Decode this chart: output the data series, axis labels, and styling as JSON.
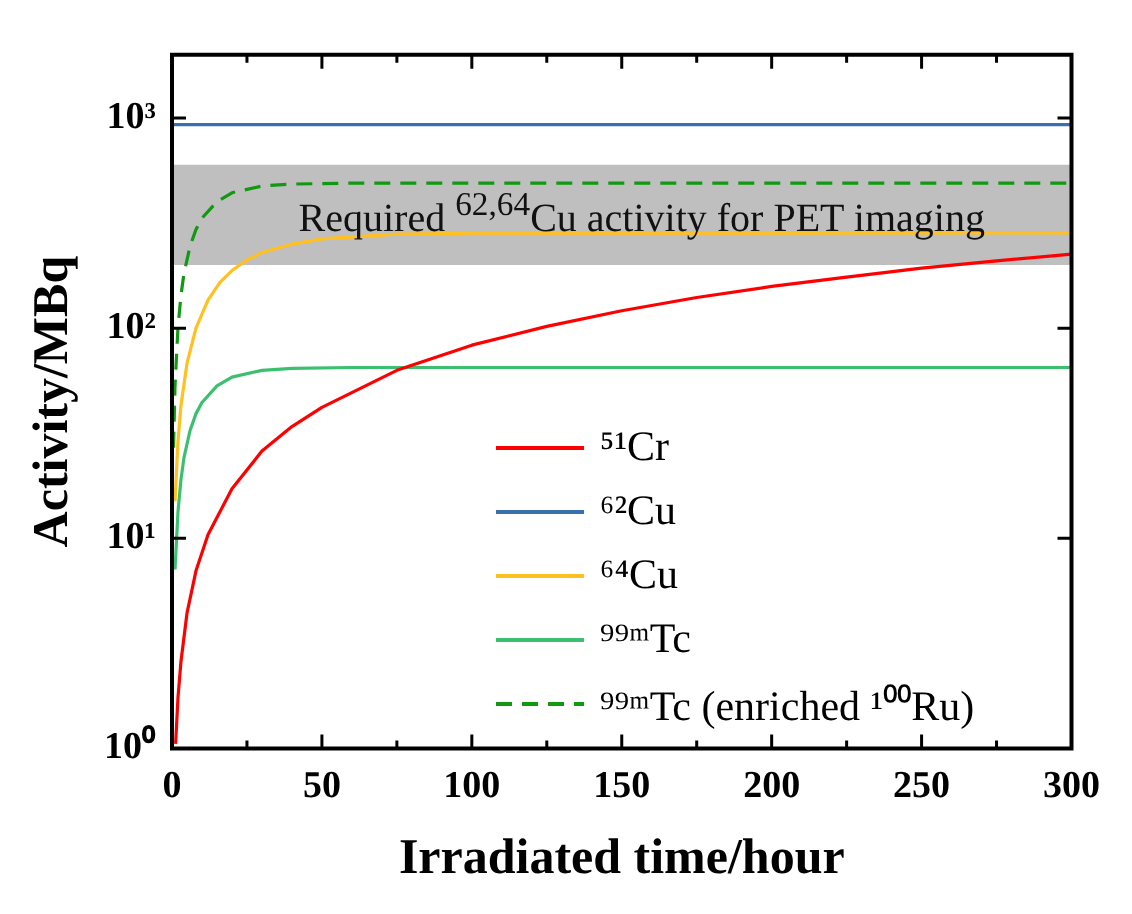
{
  "chart_data": {
    "type": "line",
    "xlabel": "Irradiated time/hour",
    "ylabel": "Activity/MBq",
    "log": "y",
    "grid": false,
    "legend": "right",
    "marker": "none",
    "xlim": [
      0,
      300
    ],
    "xticks": [
      0,
      {
        "value": 25,
        "label": null
      },
      50,
      {
        "value": 75,
        "label": null
      },
      100,
      {
        "value": 125,
        "label": null
      },
      150,
      {
        "value": 175,
        "label": null
      },
      200,
      {
        "value": 225,
        "label": null
      },
      250,
      {
        "value": 275,
        "label": null
      },
      300
    ],
    "ylim": [
      1,
      2000
    ],
    "yticks": [
      {
        "value": 1,
        "label": "10⁰"
      },
      {
        "value": 10,
        "label": "10¹"
      },
      {
        "value": 100,
        "label": "10²"
      },
      {
        "value": 1000,
        "label": "10³"
      }
    ],
    "bands": [
      {
        "axis": "y",
        "from": 200,
        "to": 600,
        "label": "Required $^{62,64}$Cu activity for PET imaging",
        "color": "#bfbfbf"
      }
    ],
    "series": [
      {
        "name": "⁵¹Cr",
        "color": "#ff0000",
        "line_style": "solid",
        "x": [
          1.2,
          2,
          3,
          5,
          8,
          12,
          20,
          30,
          40,
          50,
          75,
          100,
          125,
          150,
          175,
          200,
          225,
          250,
          275,
          300
        ],
        "values": [
          1.05,
          1.75,
          2.6,
          4.4,
          7,
          10.4,
          17.2,
          26,
          34,
          42,
          63,
          83,
          102,
          121,
          140,
          158,
          175,
          193,
          209,
          225
        ]
      },
      {
        "name": "⁶²Cu",
        "color": "#3a6fb0",
        "line_style": "solid",
        "x": [
          0,
          300
        ],
        "values": [
          930,
          930
        ]
      },
      {
        "name": "⁶⁴Cu",
        "color": "#ffc020",
        "line_style": "solid",
        "x": [
          1,
          2,
          3,
          5,
          8,
          12,
          16,
          20,
          25,
          30,
          40,
          50,
          75,
          100,
          300
        ],
        "values": [
          15,
          29,
          43,
          68,
          100,
          136,
          165,
          188,
          211,
          229,
          251,
          266,
          280,
          283,
          284
        ]
      },
      {
        "name": "⁹⁹ᵐTc",
        "color": "#3cc070",
        "line_style": "solid",
        "x": [
          1,
          2,
          3,
          4,
          6,
          8,
          10,
          15,
          20,
          30,
          40,
          60,
          300
        ],
        "values": [
          7.1,
          13.4,
          19.1,
          24.2,
          32.5,
          39.2,
          44.3,
          53.1,
          58.5,
          63,
          64.4,
          65,
          65
        ]
      },
      {
        "name": "⁹⁹ᵐTc (enriched ¹⁰⁰Ru)",
        "color": "#119911",
        "line_style": "dashed",
        "x": [
          0.5,
          1,
          2,
          3,
          4,
          6,
          8,
          10,
          15,
          20,
          30,
          40,
          60,
          300
        ],
        "values": [
          27,
          53,
          101,
          144,
          182,
          245,
          295,
          334,
          400,
          441,
          475,
          485,
          490,
          490
        ]
      }
    ]
  }
}
